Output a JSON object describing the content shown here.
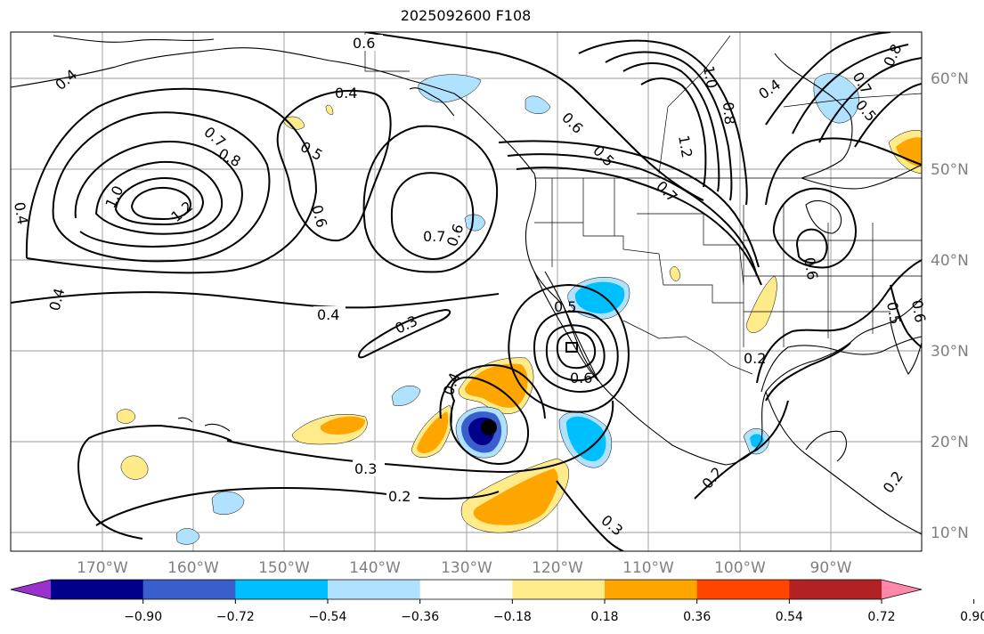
{
  "title": "2025092600 F108",
  "lat_labels": [
    "60°N",
    "50°N",
    "40°N",
    "30°N",
    "20°N",
    "10°N"
  ],
  "lon_labels": [
    "170°W",
    "160°W",
    "150°W",
    "140°W",
    "130°W",
    "120°W",
    "110°W",
    "100°W",
    "90°W"
  ],
  "colorbar": {
    "ticks": [
      "−0.90",
      "−0.72",
      "−0.54",
      "−0.36",
      "−0.18",
      "0.18",
      "0.36",
      "0.54",
      "0.72",
      "0.90"
    ],
    "colors": [
      "#9932cc",
      "#00008b",
      "#3a5fcd",
      "#00bfff",
      "#b0e2ff",
      "#ffffff",
      "#ffeb8a",
      "#ffa500",
      "#ff4500",
      "#b22222",
      "#ff88aa"
    ]
  },
  "contour_labels": [
    {
      "text": "0.6",
      "name": "contour-label-0-6-north"
    },
    {
      "text": "0.4",
      "name": "contour-label-0-4-nw"
    },
    {
      "text": "0.4",
      "name": "contour-label-0-4-gulf-alaska"
    },
    {
      "text": "0.7",
      "name": "contour-label-0-7-west"
    },
    {
      "text": "0.8",
      "name": "contour-label-0-8-west"
    },
    {
      "text": "1.0",
      "name": "contour-label-1-0-west"
    },
    {
      "text": "1.2",
      "name": "contour-label-1-2-west"
    },
    {
      "text": "0.5",
      "name": "contour-label-0-5-mid"
    },
    {
      "text": "0.6",
      "name": "contour-label-0-6-mid"
    },
    {
      "text": "0.7",
      "name": "contour-label-0-7-mid"
    },
    {
      "text": "0.6",
      "name": "contour-label-0-6-coast"
    },
    {
      "text": "0.4",
      "name": "contour-label-0-4-left-edge"
    },
    {
      "text": "0.4",
      "name": "contour-label-0-4-west-low"
    },
    {
      "text": "0.4",
      "name": "contour-label-0-4-central"
    },
    {
      "text": "0.3",
      "name": "contour-label-0-3-central"
    },
    {
      "text": "0.5",
      "name": "contour-label-0-5-baja"
    },
    {
      "text": "0.6",
      "name": "contour-label-0-6-baja"
    },
    {
      "text": "0.4",
      "name": "contour-label-0-4-storm"
    },
    {
      "text": "0.3",
      "name": "contour-label-0-3-south"
    },
    {
      "text": "0.2",
      "name": "contour-label-0-2-south"
    },
    {
      "text": "0.3",
      "name": "contour-label-0-3-southeast"
    },
    {
      "text": "0.2",
      "name": "contour-label-0-2-mexico"
    },
    {
      "text": "0.2",
      "name": "contour-label-0-2-gulf"
    },
    {
      "text": "1.0",
      "name": "contour-label-1-0-canada"
    },
    {
      "text": "0.8",
      "name": "contour-label-0-8-canada"
    },
    {
      "text": "1.2",
      "name": "contour-label-1-2-canada"
    },
    {
      "text": "0.7",
      "name": "contour-label-0-7-canada"
    },
    {
      "text": "0.6",
      "name": "contour-label-0-6-canada"
    },
    {
      "text": "0.5",
      "name": "contour-label-0-5-canada"
    },
    {
      "text": "0.4",
      "name": "contour-label-0-4-canada"
    },
    {
      "text": "0.5",
      "name": "contour-label-0-5-hudson"
    },
    {
      "text": "0.7",
      "name": "contour-label-0-7-hudson"
    },
    {
      "text": "0.8",
      "name": "contour-label-0-8-hudson"
    },
    {
      "text": "0.6",
      "name": "contour-label-0-6-midwest"
    },
    {
      "text": "0.5",
      "name": "contour-label-0-5-east"
    },
    {
      "text": "0.6",
      "name": "contour-label-0-6-east"
    },
    {
      "text": "0.2",
      "name": "contour-label-0-2-caribbean"
    }
  ]
}
